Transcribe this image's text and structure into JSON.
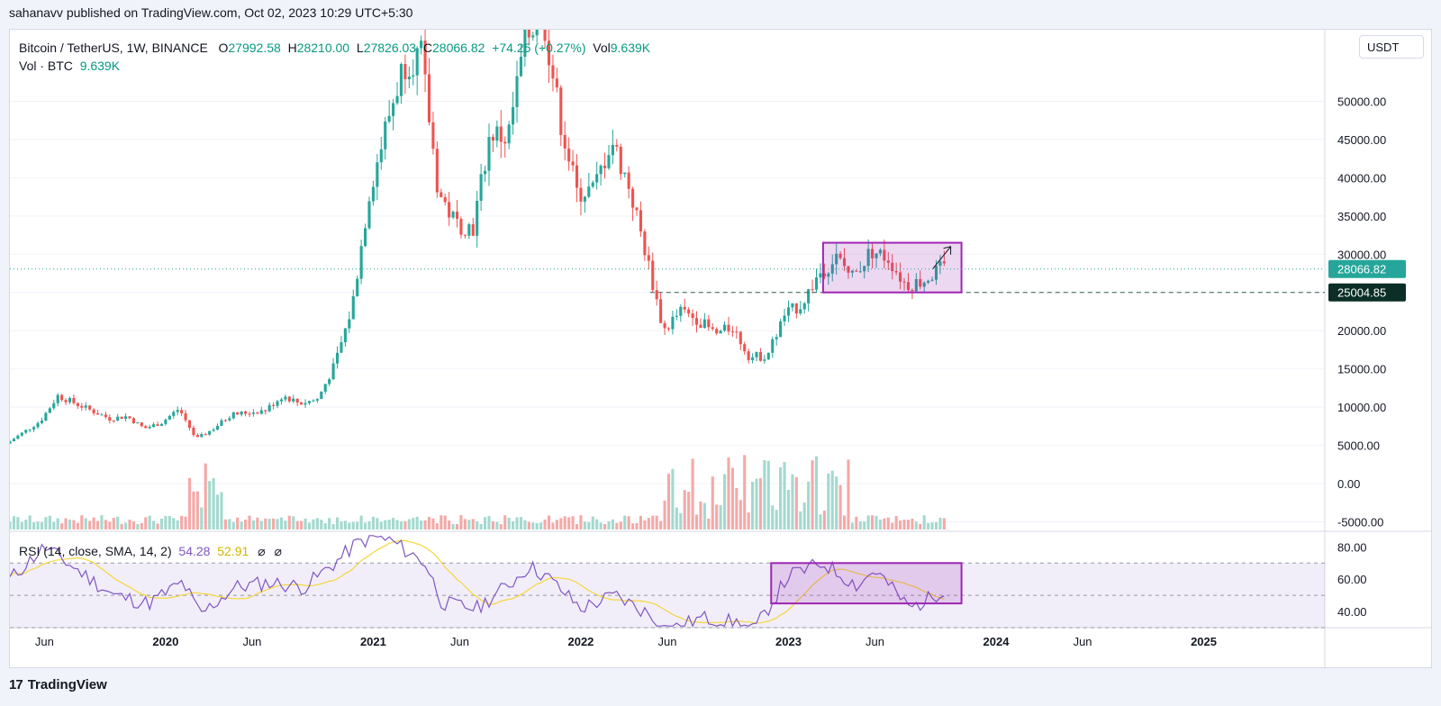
{
  "publisher": "sahanavv published on TradingView.com, Oct 02, 2023 10:29 UTC+5:30",
  "legend": {
    "symbol": "Bitcoin / TetherUS, 1W, BINANCE",
    "o_label": "O",
    "o": "27992.58",
    "h_label": "H",
    "h": "28210.00",
    "l_label": "L",
    "l": "27826.03",
    "c_label": "C",
    "c": "28066.82",
    "change": "+74.25 (+0.27%)",
    "vol_label": "Vol",
    "vol": "9.639K",
    "vol_row_label": "Vol · BTC",
    "vol_row_value": "9.639K"
  },
  "rsi_legend": {
    "label": "RSI (14, close, SMA, 14, 2)",
    "rsi": "54.28",
    "sma": "52.91",
    "icons": [
      "eye-off-icon",
      "eye-off-icon"
    ]
  },
  "currency_button": "USDT",
  "price_badges": {
    "last": "28066.82",
    "level": "25004.85"
  },
  "footer": {
    "logo_text": "17",
    "brand": "TradingView"
  },
  "colors": {
    "up": "#26a69a",
    "down": "#ef5350",
    "rsi": "#7e57c2",
    "rsi_sma": "#f5d63d",
    "box": "#9c27b0",
    "dashed_level": "#2e5e4e"
  },
  "chart_data": {
    "type": "candlestick",
    "title": "Bitcoin / TetherUS, 1W, BINANCE",
    "price_axis": {
      "ticks": [
        "50000.00",
        "45000.00",
        "40000.00",
        "35000.00",
        "30000.00",
        "25000.00",
        "20000.00",
        "15000.00",
        "10000.00",
        "5000.00",
        "0.00",
        "-5000.00"
      ],
      "range": [
        -6000,
        57000
      ]
    },
    "time_axis": {
      "ticks": [
        "Jun",
        "2020",
        "Jun",
        "2021",
        "Jun",
        "2022",
        "Jun",
        "2023",
        "Jun",
        "2024",
        "Jun",
        "2025"
      ]
    },
    "rsi_axis": {
      "ticks": [
        "80.00",
        "60.00",
        "40.00"
      ],
      "range": [
        30,
        88
      ],
      "bands": [
        70,
        30
      ]
    },
    "price_path": [
      [
        "2019-04",
        5200
      ],
      [
        "2019-06",
        8200
      ],
      [
        "2019-07",
        11500
      ],
      [
        "2019-08",
        10500
      ],
      [
        "2019-09",
        9500
      ],
      [
        "2019-10",
        8500
      ],
      [
        "2019-11",
        8800
      ],
      [
        "2019-12",
        7200
      ],
      [
        "2020-01",
        8000
      ],
      [
        "2020-02",
        9800
      ],
      [
        "2020-03",
        5800
      ],
      [
        "2020-04",
        7200
      ],
      [
        "2020-05",
        9000
      ],
      [
        "2020-06",
        9300
      ],
      [
        "2020-07",
        9600
      ],
      [
        "2020-08",
        11500
      ],
      [
        "2020-09",
        10500
      ],
      [
        "2020-10",
        11000
      ],
      [
        "2020-11",
        15500
      ],
      [
        "2020-12",
        23000
      ],
      [
        "2021-01",
        38000
      ],
      [
        "2021-02",
        47000
      ],
      [
        "2021-03",
        55000
      ],
      [
        "2021-04",
        56000
      ],
      [
        "2021-05",
        38000
      ],
      [
        "2021-06",
        34000
      ],
      [
        "2021-07",
        33500
      ],
      [
        "2021-08",
        46000
      ],
      [
        "2021-09",
        45000
      ],
      [
        "2021-10",
        58000
      ],
      [
        "2021-11",
        62000
      ],
      [
        "2021-12",
        48000
      ],
      [
        "2022-01",
        38000
      ],
      [
        "2022-02",
        38500
      ],
      [
        "2022-03",
        45000
      ],
      [
        "2022-04",
        39000
      ],
      [
        "2022-05",
        30000
      ],
      [
        "2022-06",
        20000
      ],
      [
        "2022-07",
        22500
      ],
      [
        "2022-08",
        21500
      ],
      [
        "2022-09",
        19500
      ],
      [
        "2022-10",
        20500
      ],
      [
        "2022-11",
        16500
      ],
      [
        "2022-12",
        16800
      ],
      [
        "2023-01",
        22000
      ],
      [
        "2023-02",
        23500
      ],
      [
        "2023-03",
        27500
      ],
      [
        "2023-04",
        29500
      ],
      [
        "2023-05",
        27000
      ],
      [
        "2023-06",
        30500
      ],
      [
        "2023-07",
        29500
      ],
      [
        "2023-08",
        26000
      ],
      [
        "2023-09",
        26500
      ],
      [
        "2023-10",
        28066
      ]
    ],
    "rsi_path": [
      [
        "2019-04",
        60
      ],
      [
        "2019-06",
        80
      ],
      [
        "2019-08",
        65
      ],
      [
        "2019-10",
        50
      ],
      [
        "2019-12",
        45
      ],
      [
        "2020-02",
        58
      ],
      [
        "2020-03",
        38
      ],
      [
        "2020-05",
        55
      ],
      [
        "2020-07",
        58
      ],
      [
        "2020-09",
        55
      ],
      [
        "2020-11",
        72
      ],
      [
        "2020-12",
        82
      ],
      [
        "2021-01",
        86
      ],
      [
        "2021-02",
        84
      ],
      [
        "2021-04",
        70
      ],
      [
        "2021-05",
        45
      ],
      [
        "2021-07",
        42
      ],
      [
        "2021-09",
        58
      ],
      [
        "2021-10",
        68
      ],
      [
        "2021-11",
        62
      ],
      [
        "2022-01",
        42
      ],
      [
        "2022-03",
        50
      ],
      [
        "2022-05",
        38
      ],
      [
        "2022-06",
        28
      ],
      [
        "2022-08",
        36
      ],
      [
        "2022-10",
        33
      ],
      [
        "2022-11",
        28
      ],
      [
        "2023-01",
        62
      ],
      [
        "2023-03",
        70
      ],
      [
        "2023-05",
        56
      ],
      [
        "2023-06",
        66
      ],
      [
        "2023-08",
        42
      ],
      [
        "2023-09",
        47
      ],
      [
        "2023-10",
        54.28
      ]
    ],
    "annotations": [
      {
        "type": "box",
        "from": "2023-03",
        "to": "2023-11",
        "top": 31500,
        "bottom": 25004.85
      },
      {
        "type": "dashed_level",
        "value": 25004.85,
        "from": "2022-05"
      },
      {
        "type": "rsi_box",
        "from": "2022-12",
        "to": "2023-11",
        "top": 70,
        "bottom": 45
      }
    ]
  }
}
